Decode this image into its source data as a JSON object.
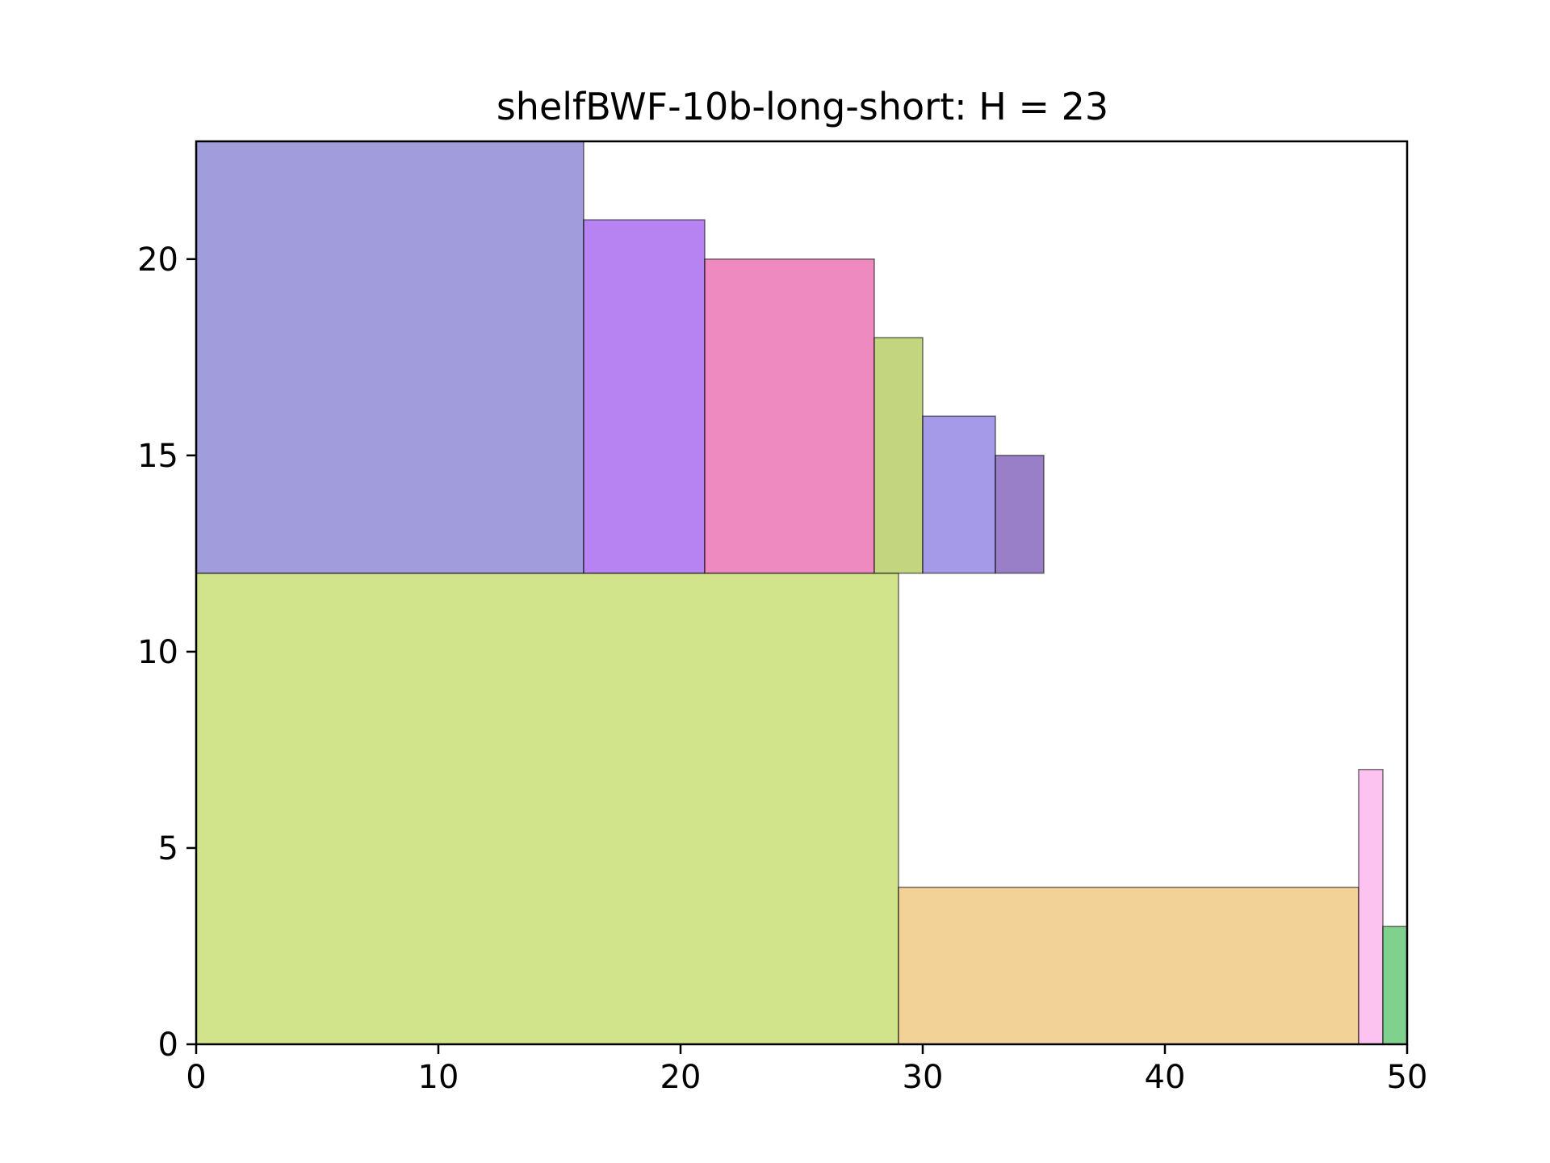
{
  "chart_data": {
    "type": "rectangles",
    "title": "shelfBWF-10b-long-short: H = 23",
    "xlabel": "",
    "ylabel": "",
    "xlim": [
      0,
      50
    ],
    "ylim": [
      0,
      23
    ],
    "grid": false,
    "x_ticks": [
      0,
      10,
      20,
      30,
      40,
      50
    ],
    "y_ticks": [
      0,
      5,
      10,
      15,
      20
    ],
    "x_tick_labels": [
      "0",
      "10",
      "20",
      "30",
      "40",
      "50"
    ],
    "y_tick_labels": [
      "0",
      "5",
      "10",
      "15",
      "20"
    ],
    "rectangles": [
      {
        "x": 0,
        "y": 0,
        "width": 29,
        "height": 12,
        "color": "#c4dd6c"
      },
      {
        "x": 29,
        "y": 0,
        "width": 19,
        "height": 4,
        "color": "#f0c57a"
      },
      {
        "x": 48,
        "y": 0,
        "width": 1,
        "height": 7,
        "color": "#fbb1ec"
      },
      {
        "x": 49,
        "y": 0,
        "width": 1,
        "height": 3,
        "color": "#5cc46e"
      },
      {
        "x": 0,
        "y": 12,
        "width": 16,
        "height": 11,
        "color": "#8680d2"
      },
      {
        "x": 16,
        "y": 12,
        "width": 5,
        "height": 9,
        "color": "#a360ee"
      },
      {
        "x": 21,
        "y": 12,
        "width": 7,
        "height": 8,
        "color": "#eb69b0"
      },
      {
        "x": 28,
        "y": 12,
        "width": 2,
        "height": 6,
        "color": "#b4c95c"
      },
      {
        "x": 30,
        "y": 12,
        "width": 3,
        "height": 4,
        "color": "#8c7ee2"
      },
      {
        "x": 33,
        "y": 12,
        "width": 2,
        "height": 3,
        "color": "#7b5bb9"
      }
    ]
  }
}
